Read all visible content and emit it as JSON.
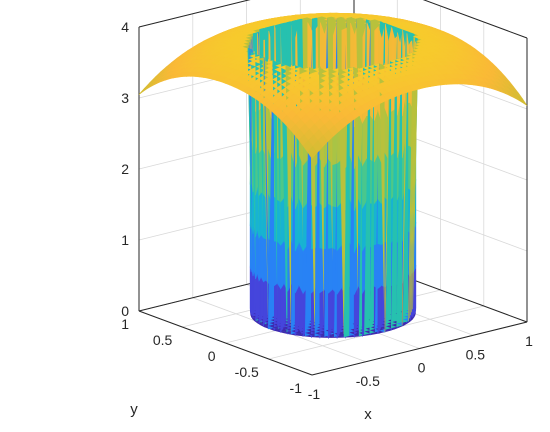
{
  "chart_data": {
    "type": "surface",
    "title": "",
    "xlabel": "x",
    "ylabel": "y",
    "zlabel": "",
    "xlim": [
      -1,
      1
    ],
    "ylim": [
      -1,
      1
    ],
    "zlim": [
      0,
      4
    ],
    "xticks": [
      {
        "value": -1,
        "label": "-1"
      },
      {
        "value": -0.5,
        "label": "-0.5"
      },
      {
        "value": 0,
        "label": "0"
      },
      {
        "value": 0.5,
        "label": "0.5"
      },
      {
        "value": 1,
        "label": "1"
      }
    ],
    "yticks": [
      {
        "value": -1,
        "label": "-1"
      },
      {
        "value": -0.5,
        "label": "-0.5"
      },
      {
        "value": 0,
        "label": "0"
      },
      {
        "value": 0.5,
        "label": "0.5"
      },
      {
        "value": 1,
        "label": "1"
      }
    ],
    "zticks": [
      {
        "value": 0,
        "label": "0"
      },
      {
        "value": 1,
        "label": "1"
      },
      {
        "value": 2,
        "label": "2"
      },
      {
        "value": 3,
        "label": "3"
      },
      {
        "value": 4,
        "label": "4"
      }
    ],
    "grid": true,
    "colormap": "parula",
    "surface": {
      "inner_radius": 0.6,
      "inner_level": 0.05,
      "outer_level_at_center": 3.85,
      "outer_level_at_corner": 3.05,
      "wall_ripple": 0.25
    }
  }
}
